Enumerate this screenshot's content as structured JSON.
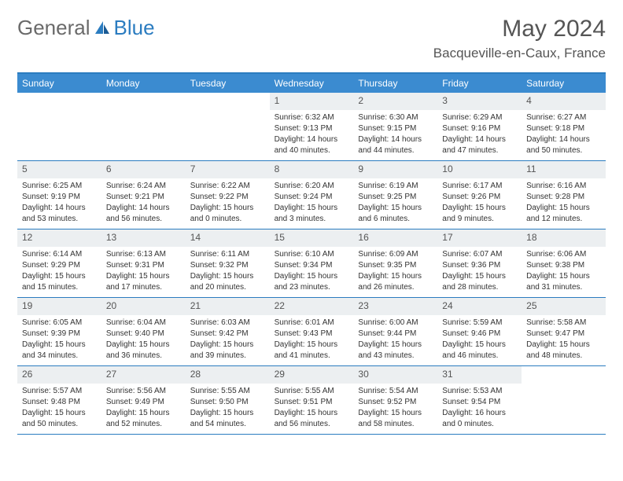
{
  "brand": {
    "part1": "General",
    "part2": "Blue"
  },
  "title": "May 2024",
  "location": "Bacqueville-en-Caux, France",
  "weekdays": [
    "Sunday",
    "Monday",
    "Tuesday",
    "Wednesday",
    "Thursday",
    "Friday",
    "Saturday"
  ],
  "colors": {
    "header_bg": "#3b8bd0",
    "border": "#2b7cc0",
    "daynum_bg": "#eceff1",
    "text": "#333333"
  },
  "weeks": [
    [
      {
        "empty": true
      },
      {
        "empty": true
      },
      {
        "empty": true
      },
      {
        "n": "1",
        "sr": "Sunrise: 6:32 AM",
        "ss": "Sunset: 9:13 PM",
        "d1": "Daylight: 14 hours",
        "d2": "and 40 minutes."
      },
      {
        "n": "2",
        "sr": "Sunrise: 6:30 AM",
        "ss": "Sunset: 9:15 PM",
        "d1": "Daylight: 14 hours",
        "d2": "and 44 minutes."
      },
      {
        "n": "3",
        "sr": "Sunrise: 6:29 AM",
        "ss": "Sunset: 9:16 PM",
        "d1": "Daylight: 14 hours",
        "d2": "and 47 minutes."
      },
      {
        "n": "4",
        "sr": "Sunrise: 6:27 AM",
        "ss": "Sunset: 9:18 PM",
        "d1": "Daylight: 14 hours",
        "d2": "and 50 minutes."
      }
    ],
    [
      {
        "n": "5",
        "sr": "Sunrise: 6:25 AM",
        "ss": "Sunset: 9:19 PM",
        "d1": "Daylight: 14 hours",
        "d2": "and 53 minutes."
      },
      {
        "n": "6",
        "sr": "Sunrise: 6:24 AM",
        "ss": "Sunset: 9:21 PM",
        "d1": "Daylight: 14 hours",
        "d2": "and 56 minutes."
      },
      {
        "n": "7",
        "sr": "Sunrise: 6:22 AM",
        "ss": "Sunset: 9:22 PM",
        "d1": "Daylight: 15 hours",
        "d2": "and 0 minutes."
      },
      {
        "n": "8",
        "sr": "Sunrise: 6:20 AM",
        "ss": "Sunset: 9:24 PM",
        "d1": "Daylight: 15 hours",
        "d2": "and 3 minutes."
      },
      {
        "n": "9",
        "sr": "Sunrise: 6:19 AM",
        "ss": "Sunset: 9:25 PM",
        "d1": "Daylight: 15 hours",
        "d2": "and 6 minutes."
      },
      {
        "n": "10",
        "sr": "Sunrise: 6:17 AM",
        "ss": "Sunset: 9:26 PM",
        "d1": "Daylight: 15 hours",
        "d2": "and 9 minutes."
      },
      {
        "n": "11",
        "sr": "Sunrise: 6:16 AM",
        "ss": "Sunset: 9:28 PM",
        "d1": "Daylight: 15 hours",
        "d2": "and 12 minutes."
      }
    ],
    [
      {
        "n": "12",
        "sr": "Sunrise: 6:14 AM",
        "ss": "Sunset: 9:29 PM",
        "d1": "Daylight: 15 hours",
        "d2": "and 15 minutes."
      },
      {
        "n": "13",
        "sr": "Sunrise: 6:13 AM",
        "ss": "Sunset: 9:31 PM",
        "d1": "Daylight: 15 hours",
        "d2": "and 17 minutes."
      },
      {
        "n": "14",
        "sr": "Sunrise: 6:11 AM",
        "ss": "Sunset: 9:32 PM",
        "d1": "Daylight: 15 hours",
        "d2": "and 20 minutes."
      },
      {
        "n": "15",
        "sr": "Sunrise: 6:10 AM",
        "ss": "Sunset: 9:34 PM",
        "d1": "Daylight: 15 hours",
        "d2": "and 23 minutes."
      },
      {
        "n": "16",
        "sr": "Sunrise: 6:09 AM",
        "ss": "Sunset: 9:35 PM",
        "d1": "Daylight: 15 hours",
        "d2": "and 26 minutes."
      },
      {
        "n": "17",
        "sr": "Sunrise: 6:07 AM",
        "ss": "Sunset: 9:36 PM",
        "d1": "Daylight: 15 hours",
        "d2": "and 28 minutes."
      },
      {
        "n": "18",
        "sr": "Sunrise: 6:06 AM",
        "ss": "Sunset: 9:38 PM",
        "d1": "Daylight: 15 hours",
        "d2": "and 31 minutes."
      }
    ],
    [
      {
        "n": "19",
        "sr": "Sunrise: 6:05 AM",
        "ss": "Sunset: 9:39 PM",
        "d1": "Daylight: 15 hours",
        "d2": "and 34 minutes."
      },
      {
        "n": "20",
        "sr": "Sunrise: 6:04 AM",
        "ss": "Sunset: 9:40 PM",
        "d1": "Daylight: 15 hours",
        "d2": "and 36 minutes."
      },
      {
        "n": "21",
        "sr": "Sunrise: 6:03 AM",
        "ss": "Sunset: 9:42 PM",
        "d1": "Daylight: 15 hours",
        "d2": "and 39 minutes."
      },
      {
        "n": "22",
        "sr": "Sunrise: 6:01 AM",
        "ss": "Sunset: 9:43 PM",
        "d1": "Daylight: 15 hours",
        "d2": "and 41 minutes."
      },
      {
        "n": "23",
        "sr": "Sunrise: 6:00 AM",
        "ss": "Sunset: 9:44 PM",
        "d1": "Daylight: 15 hours",
        "d2": "and 43 minutes."
      },
      {
        "n": "24",
        "sr": "Sunrise: 5:59 AM",
        "ss": "Sunset: 9:46 PM",
        "d1": "Daylight: 15 hours",
        "d2": "and 46 minutes."
      },
      {
        "n": "25",
        "sr": "Sunrise: 5:58 AM",
        "ss": "Sunset: 9:47 PM",
        "d1": "Daylight: 15 hours",
        "d2": "and 48 minutes."
      }
    ],
    [
      {
        "n": "26",
        "sr": "Sunrise: 5:57 AM",
        "ss": "Sunset: 9:48 PM",
        "d1": "Daylight: 15 hours",
        "d2": "and 50 minutes."
      },
      {
        "n": "27",
        "sr": "Sunrise: 5:56 AM",
        "ss": "Sunset: 9:49 PM",
        "d1": "Daylight: 15 hours",
        "d2": "and 52 minutes."
      },
      {
        "n": "28",
        "sr": "Sunrise: 5:55 AM",
        "ss": "Sunset: 9:50 PM",
        "d1": "Daylight: 15 hours",
        "d2": "and 54 minutes."
      },
      {
        "n": "29",
        "sr": "Sunrise: 5:55 AM",
        "ss": "Sunset: 9:51 PM",
        "d1": "Daylight: 15 hours",
        "d2": "and 56 minutes."
      },
      {
        "n": "30",
        "sr": "Sunrise: 5:54 AM",
        "ss": "Sunset: 9:52 PM",
        "d1": "Daylight: 15 hours",
        "d2": "and 58 minutes."
      },
      {
        "n": "31",
        "sr": "Sunrise: 5:53 AM",
        "ss": "Sunset: 9:54 PM",
        "d1": "Daylight: 16 hours",
        "d2": "and 0 minutes."
      },
      {
        "empty": true
      }
    ]
  ]
}
